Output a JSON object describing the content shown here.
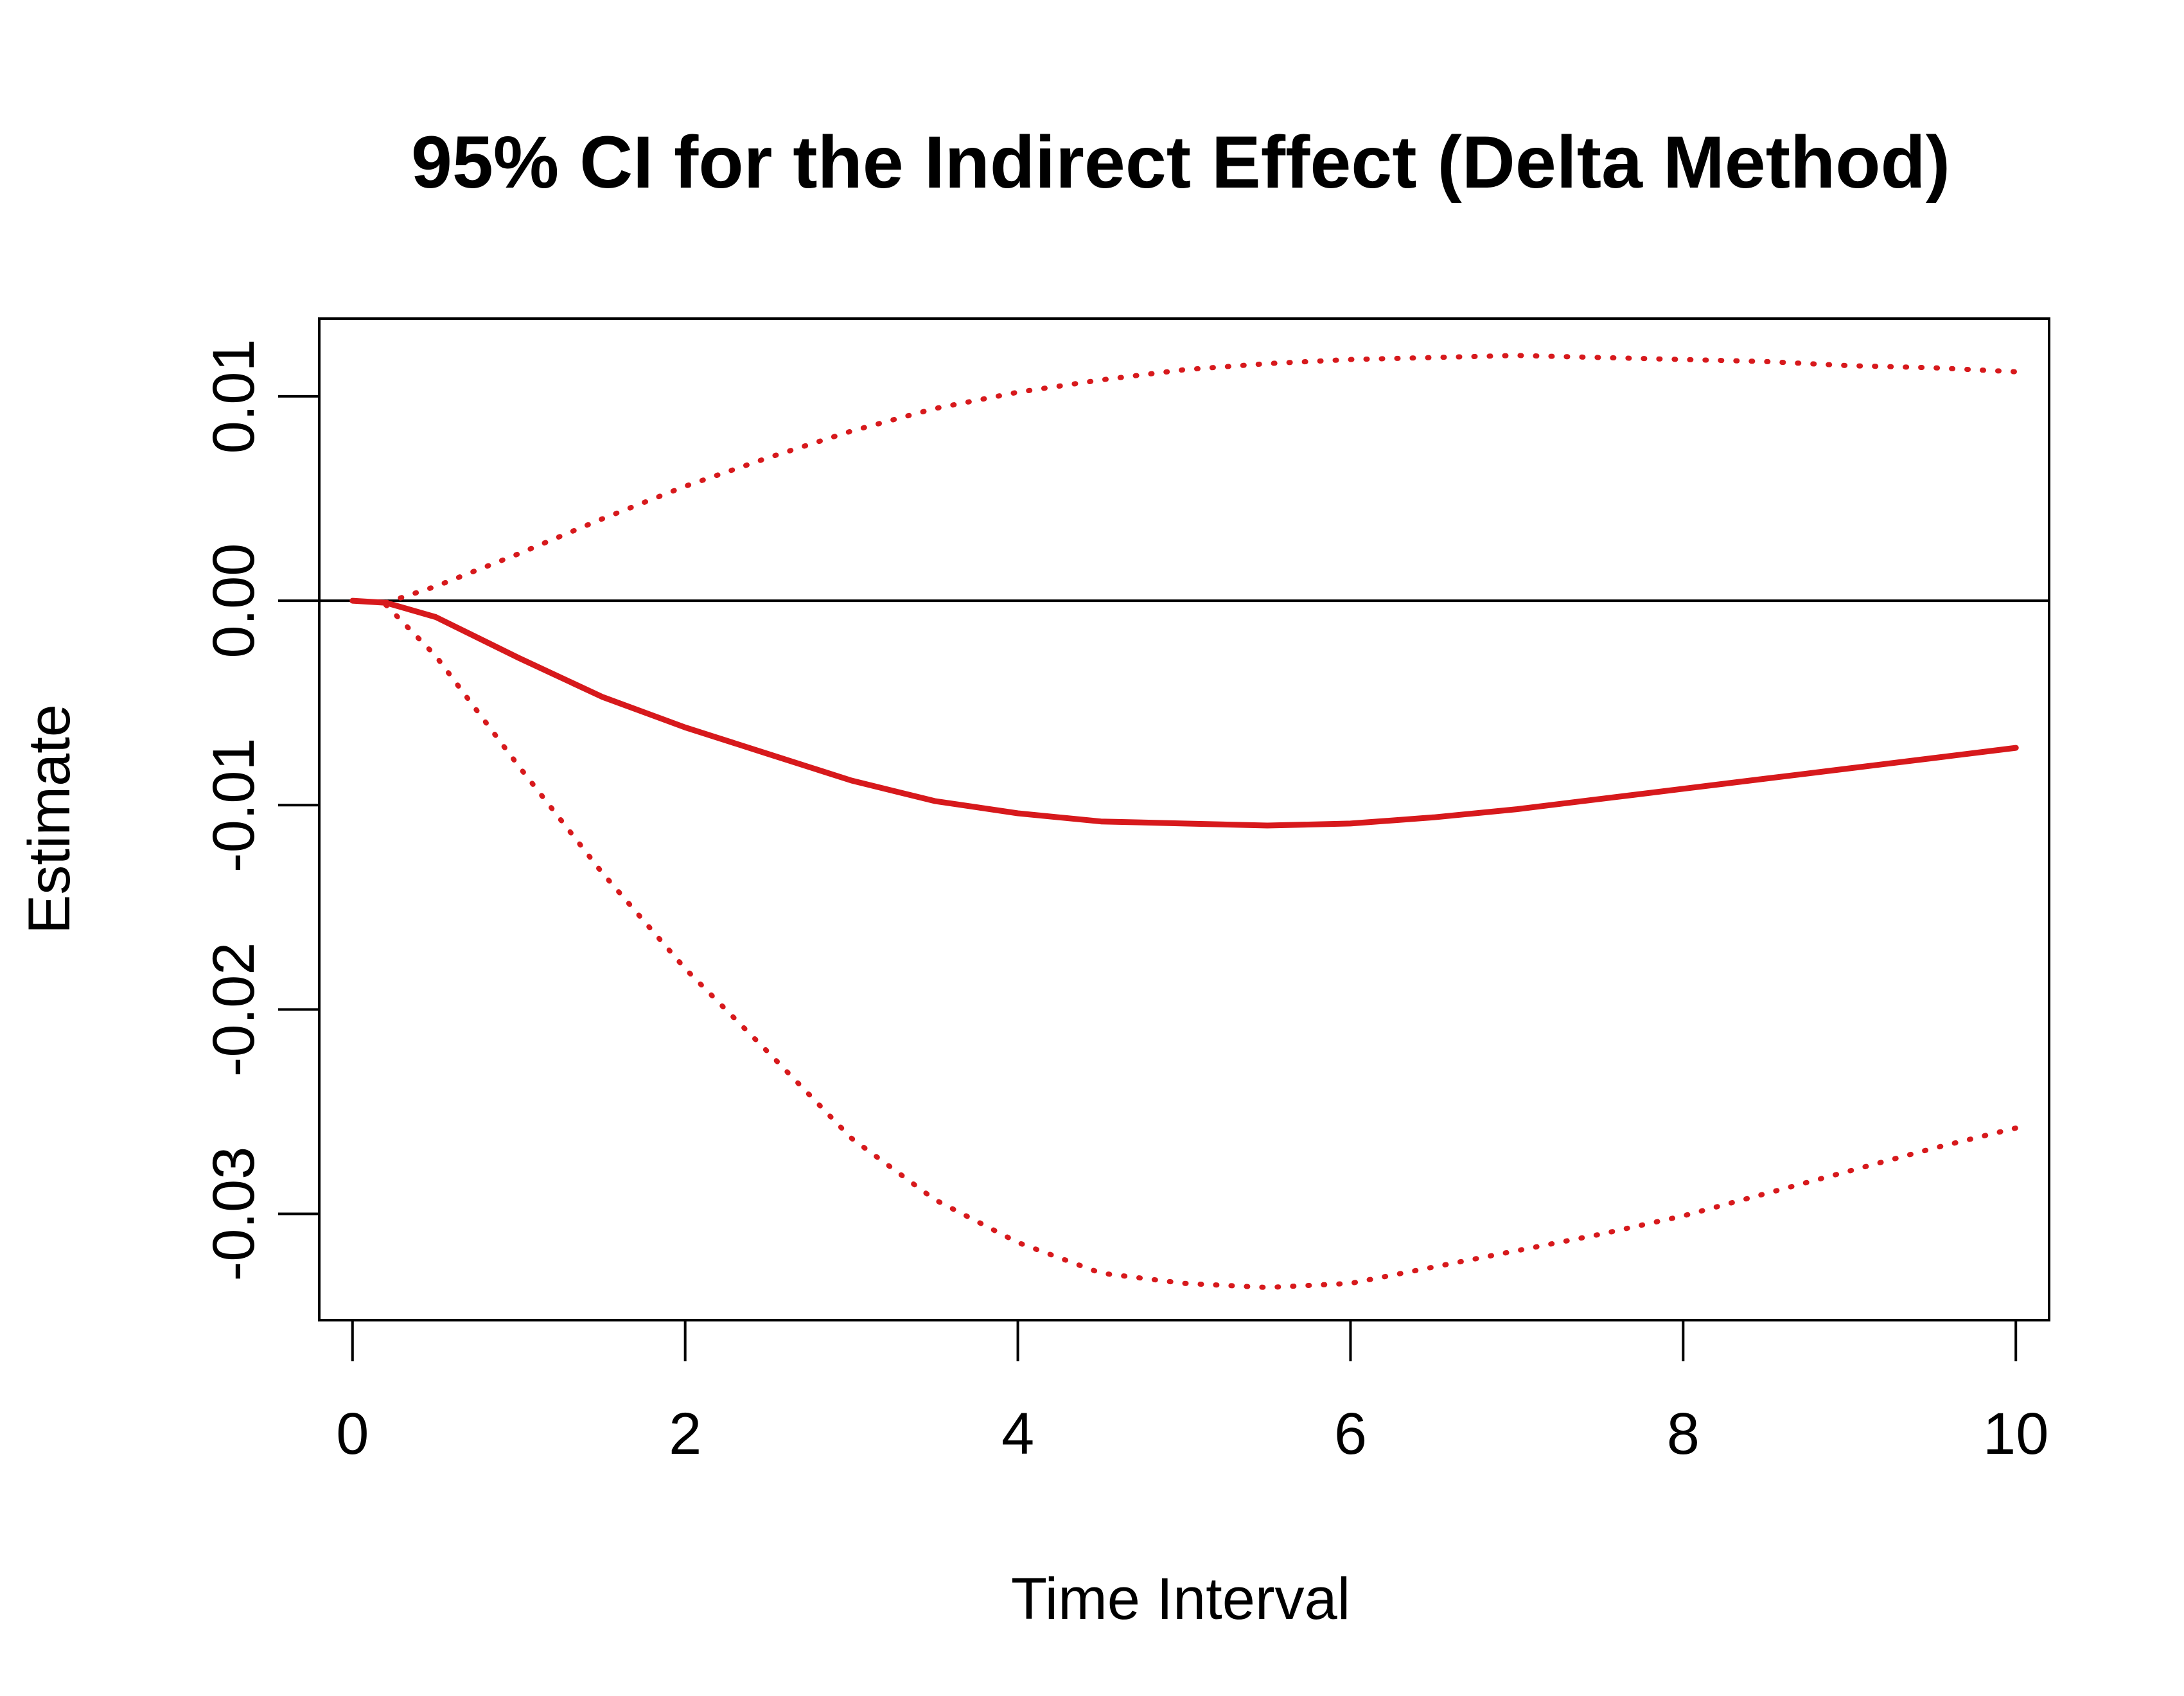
{
  "chart_data": {
    "type": "line",
    "title": "95% CI for the Indirect Effect (Delta Method)",
    "xlabel": "Time Interval",
    "ylabel": "Estimate",
    "xlim": [
      -0.2,
      10.2
    ],
    "ylim": [
      -0.0352,
      0.0138
    ],
    "x_ticks": [
      0,
      2,
      4,
      6,
      8,
      10
    ],
    "x_tick_labels": [
      "0",
      "2",
      "4",
      "6",
      "8",
      "10"
    ],
    "y_ticks": [
      -0.03,
      -0.02,
      -0.01,
      0.0,
      0.01
    ],
    "y_tick_labels": [
      "-0.03",
      "-0.02",
      "-0.01",
      "0.00",
      "0.01"
    ],
    "reference_line": {
      "y": 0,
      "color": "#000000"
    },
    "grid": false,
    "legend": "none",
    "x": [
      0,
      0.2,
      0.5,
      1,
      1.5,
      2,
      2.5,
      3,
      3.5,
      4,
      4.5,
      5,
      5.5,
      6,
      6.5,
      7,
      7.5,
      8,
      8.5,
      9,
      9.5,
      10
    ],
    "series": [
      {
        "style": "solid",
        "color": "#d7191c",
        "values": [
          0,
          -0.0001,
          -0.0008,
          -0.0028,
          -0.0047,
          -0.0062,
          -0.0075,
          -0.0088,
          -0.0098,
          -0.0104,
          -0.0108,
          -0.0109,
          -0.011,
          -0.0109,
          -0.0106,
          -0.0102,
          -0.0097,
          -0.0092,
          -0.0087,
          -0.0082,
          -0.0077,
          -0.0072
        ]
      },
      {
        "style": "dotted",
        "color": "#d7191c",
        "values": [
          null,
          -0.0001,
          0.0007,
          0.0023,
          0.004,
          0.0056,
          0.007,
          0.0083,
          0.0094,
          0.0102,
          0.0108,
          0.0113,
          0.0116,
          0.0118,
          0.0119,
          0.012,
          0.0119,
          0.0118,
          0.0117,
          0.0115,
          0.0114,
          0.0112
        ]
      },
      {
        "style": "dotted",
        "color": "#d7191c",
        "values": [
          null,
          -0.0002,
          -0.0027,
          -0.0081,
          -0.0133,
          -0.018,
          -0.0221,
          -0.0263,
          -0.0293,
          -0.0314,
          -0.0329,
          -0.0334,
          -0.0336,
          -0.0334,
          -0.0326,
          -0.0318,
          -0.031,
          -0.0301,
          -0.029,
          -0.0279,
          -0.0268,
          -0.0258
        ]
      }
    ]
  }
}
